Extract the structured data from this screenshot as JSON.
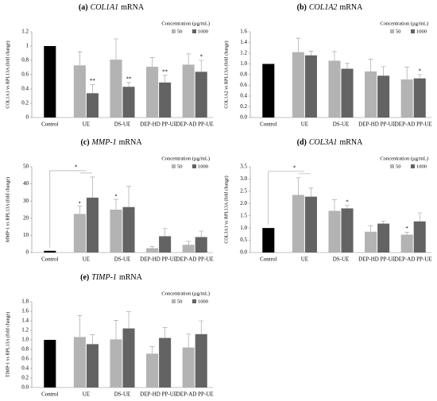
{
  "chart_data": [
    {
      "type": "bar",
      "panel": "(a)",
      "gene": "COL1A1",
      "title_rest": "mRNA",
      "ylabel": "COL1A1 vs RPL13A (fold change)",
      "legend_title": "Concentration (µg/mL)",
      "categories": [
        "Control",
        "UE",
        "DS-UE",
        "DEP-HD PP-UE",
        "DEP-AD PP-UE"
      ],
      "control_value": 1.0,
      "control_color": "#000000",
      "series": [
        {
          "name": "50",
          "color": "#b3b3b3",
          "values": [
            null,
            0.73,
            0.81,
            0.71,
            0.74
          ],
          "errors": [
            null,
            0.19,
            0.29,
            0.13,
            0.15
          ],
          "stars": [
            null,
            null,
            null,
            null,
            null
          ]
        },
        {
          "name": "1000",
          "color": "#636363",
          "values": [
            null,
            0.34,
            0.43,
            0.49,
            0.64
          ],
          "errors": [
            null,
            0.12,
            0.06,
            0.1,
            0.16
          ],
          "stars": [
            null,
            "**",
            "**",
            "**",
            "*"
          ]
        }
      ],
      "ylim": [
        0,
        1.2
      ],
      "yticks": [
        0,
        0.2,
        0.4,
        0.6,
        0.8,
        1,
        1.2
      ]
    },
    {
      "type": "bar",
      "panel": "(b)",
      "gene": "COL1A2",
      "title_rest": "mRNA",
      "ylabel": "COL1A2 vs RPL13A (fold change)",
      "legend_title": "Concentration (µg/mL)",
      "categories": [
        "Control",
        "UE",
        "DS-UE",
        "DEP-HD PP-UE",
        "DEP-AD PP-UE"
      ],
      "control_value": 1.0,
      "control_color": "#000000",
      "series": [
        {
          "name": "50",
          "color": "#b3b3b3",
          "values": [
            null,
            1.22,
            1.06,
            0.86,
            0.71
          ],
          "errors": [
            null,
            0.26,
            0.17,
            0.23,
            0.23
          ],
          "stars": [
            null,
            null,
            null,
            null,
            null
          ]
        },
        {
          "name": "1000",
          "color": "#636363",
          "values": [
            null,
            1.16,
            0.91,
            0.78,
            0.73
          ],
          "errors": [
            null,
            0.08,
            0.1,
            0.17,
            0.07
          ],
          "stars": [
            null,
            null,
            null,
            null,
            "*"
          ]
        }
      ],
      "ylim": [
        0,
        1.6
      ],
      "yticks": [
        {
          "value": 0,
          "label": "0.0"
        },
        0.2,
        0.4,
        0.6,
        0.8,
        {
          "value": 1,
          "label": "1.0"
        },
        1.2,
        1.4,
        1.6
      ]
    },
    {
      "type": "bar",
      "panel": "(c)",
      "gene": "MMP-1",
      "title_rest": "mRNA",
      "ylabel": "MMP-1 vs RPL13A (fold change)",
      "legend_title": "Concentration (µg/mL)",
      "categories": [
        "Control",
        "UE",
        "DS-UE",
        "DEP-HD PP-UE",
        "DEP-AD PP-UE"
      ],
      "control_value": 1.0,
      "control_color": "#000000",
      "bracket_label": "*",
      "series": [
        {
          "name": "50",
          "color": "#b3b3b3",
          "values": [
            null,
            22.5,
            25,
            2.5,
            4.5
          ],
          "errors": [
            null,
            4.5,
            6,
            1,
            2
          ],
          "stars": [
            null,
            "•",
            "•",
            null,
            null
          ]
        },
        {
          "name": "1000",
          "color": "#636363",
          "values": [
            null,
            32,
            26.5,
            9.5,
            9
          ],
          "errors": [
            null,
            12,
            12,
            4.5,
            3.5
          ],
          "stars": [
            null,
            null,
            null,
            null,
            null
          ]
        }
      ],
      "ylim": [
        0,
        50
      ],
      "yticks": [
        0,
        10,
        20,
        30,
        40,
        50
      ]
    },
    {
      "type": "bar",
      "panel": "(d)",
      "gene": "COL3A1",
      "title_rest": "mRNA",
      "ylabel": "COL3A1 vs RPL13A (fold change)",
      "legend_title": "Concentration (µg/mL)",
      "categories": [
        "Control",
        "UE",
        "DS-UE",
        "DEP-HD PP-UE",
        "DEP-AD PP-UE"
      ],
      "control_value": 1.0,
      "control_color": "#000000",
      "bracket_label": "*",
      "series": [
        {
          "name": "50",
          "color": "#b3b3b3",
          "values": [
            null,
            2.35,
            1.7,
            0.85,
            0.73
          ],
          "errors": [
            null,
            0.7,
            0.45,
            0.25,
            0.1
          ],
          "stars": [
            null,
            null,
            null,
            null,
            "*"
          ]
        },
        {
          "name": "1000",
          "color": "#636363",
          "values": [
            null,
            2.28,
            1.8,
            1.18,
            1.27
          ],
          "errors": [
            null,
            0.35,
            0.12,
            0.1,
            0.35
          ],
          "stars": [
            null,
            null,
            "*",
            null,
            null
          ]
        }
      ],
      "ylim": [
        0,
        3.5
      ],
      "yticks": [
        {
          "value": 0,
          "label": "0.0"
        },
        0.5,
        {
          "value": 1,
          "label": "1.0"
        },
        1.5,
        {
          "value": 2,
          "label": "2.0"
        },
        2.5,
        {
          "value": 3,
          "label": "3.0"
        },
        3.5
      ]
    },
    {
      "type": "bar",
      "panel": "(e)",
      "gene": "TIMP-1",
      "title_rest": "mRNA",
      "ylabel": "TIMP-1 vs RPL13A (fold change)",
      "legend_title": "Concentration (µg/mL)",
      "categories": [
        "Control",
        "UE",
        "DS-UE",
        "DEP-HD PP-UE",
        "DEP-AD PP-UE"
      ],
      "control_value": 1.0,
      "control_color": "#000000",
      "series": [
        {
          "name": "50",
          "color": "#b3b3b3",
          "values": [
            null,
            1.06,
            1.01,
            0.71,
            0.84
          ],
          "errors": [
            null,
            0.45,
            0.4,
            0.15,
            0.28
          ],
          "stars": [
            null,
            null,
            null,
            null,
            null
          ]
        },
        {
          "name": "1000",
          "color": "#636363",
          "values": [
            null,
            0.91,
            1.24,
            1.04,
            1.12
          ],
          "errors": [
            null,
            0.2,
            0.35,
            0.22,
            0.28
          ],
          "stars": [
            null,
            null,
            null,
            null,
            null
          ]
        }
      ],
      "ylim": [
        0,
        1.8
      ],
      "yticks": [
        {
          "value": 0,
          "label": "0.0"
        },
        0.2,
        0.4,
        0.6,
        0.8,
        {
          "value": 1,
          "label": "1.0"
        },
        1.2,
        1.4,
        1.6,
        1.8
      ]
    }
  ]
}
